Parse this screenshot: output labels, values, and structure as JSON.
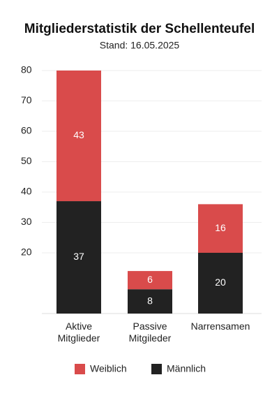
{
  "chart_data": {
    "type": "stacked_bar",
    "title": "Mitgliederstatistik der Schellenteufel",
    "subtitle": "Stand: 16.05.2025",
    "categories": [
      "Aktive Mitglieder",
      "Passive Mitgileder",
      "Narrensamen"
    ],
    "series": [
      {
        "name": "Männlich",
        "color": "#222222",
        "values": [
          37,
          8,
          20
        ]
      },
      {
        "name": "Weiblich",
        "color": "#d94b4b",
        "values": [
          43,
          6,
          16
        ]
      }
    ],
    "ylim": [
      0,
      80
    ],
    "yticks": [
      20,
      30,
      40,
      50,
      60,
      70,
      80
    ],
    "grid": true
  }
}
